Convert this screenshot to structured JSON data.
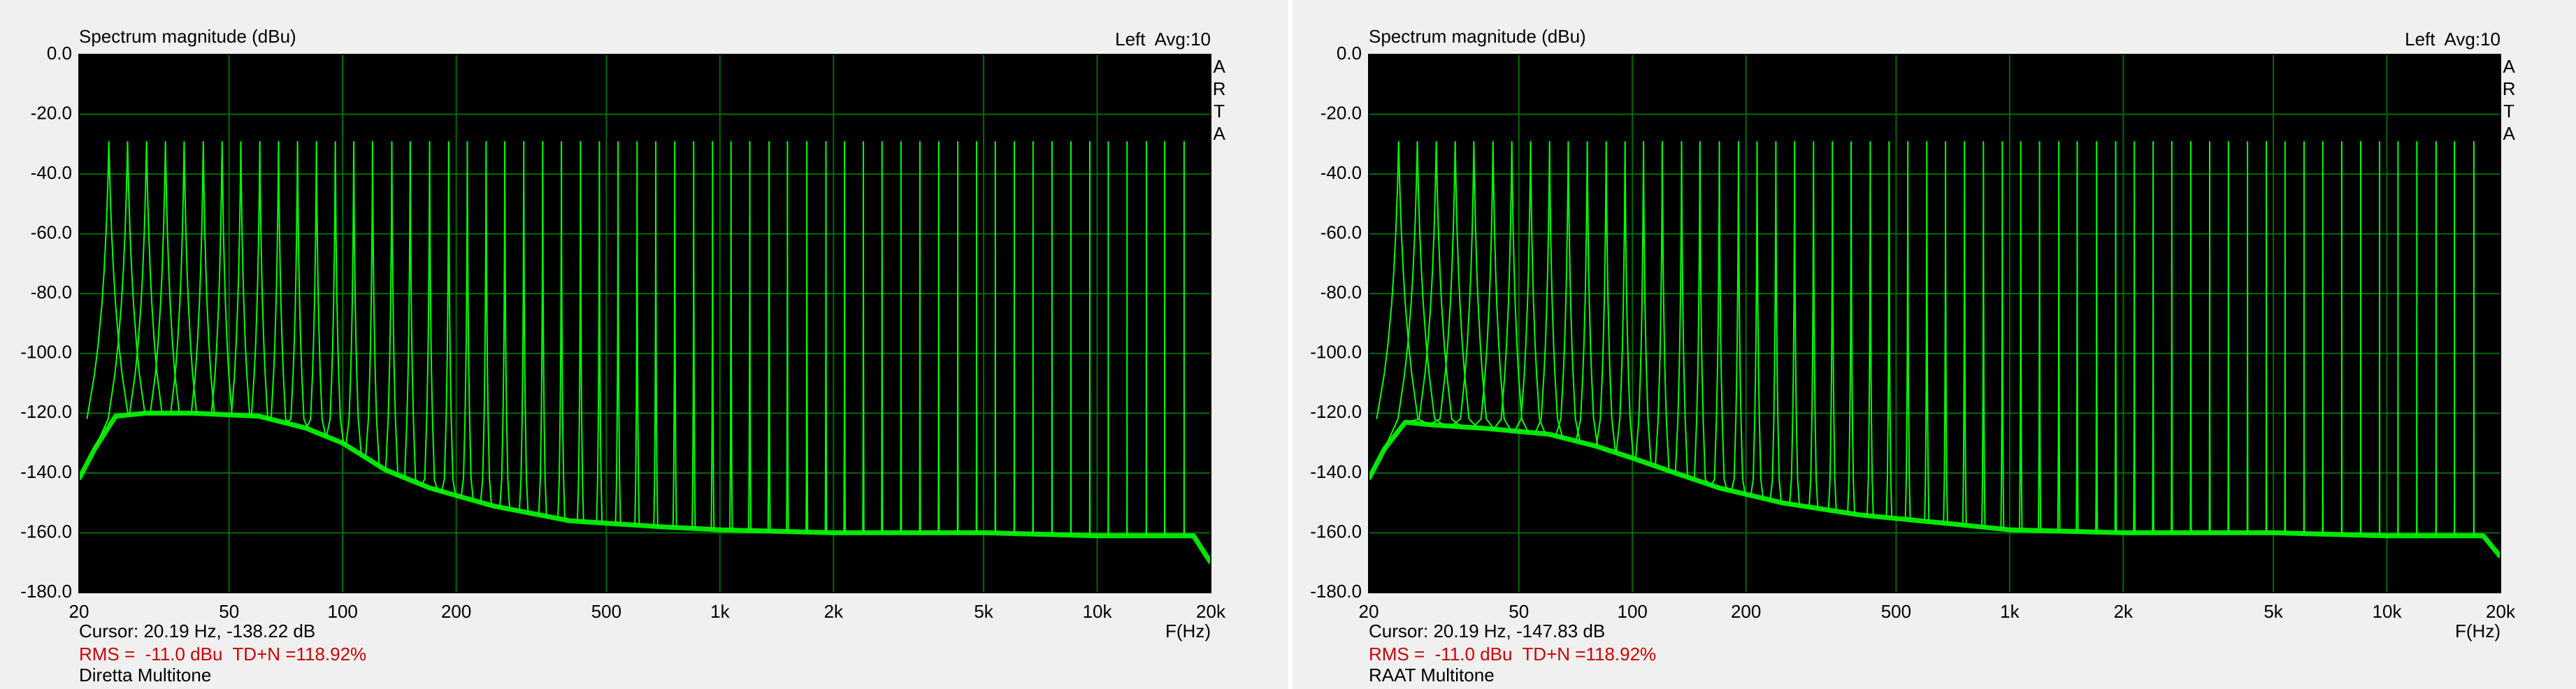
{
  "chart_data": [
    {
      "type": "line",
      "title": "Spectrum magnitude (dBu)",
      "channel": "Left  Avg:10",
      "watermark": "ARTA",
      "xlabel": "F(Hz)",
      "cursor": "Cursor: 20.19 Hz, -138.22 dB",
      "rms": "RMS =  -11.0 dBu  TD+N =118.92%",
      "caption": "Diretta Multitone",
      "xscale": "log",
      "grid": true,
      "color": "#00ff00",
      "xlim": [
        20,
        20000
      ],
      "ylim": [
        -180,
        0
      ],
      "xticks": [
        20,
        50,
        100,
        200,
        500,
        {
          "value": 1000,
          "label": "1k"
        },
        {
          "value": 2000,
          "label": "2k"
        },
        {
          "value": 5000,
          "label": "5k"
        },
        {
          "value": 10000,
          "label": "10k"
        },
        {
          "value": 20000,
          "label": "20k"
        }
      ],
      "yticks": [
        {
          "value": 0,
          "label": "0.0"
        },
        {
          "value": -20,
          "label": "-20.0"
        },
        {
          "value": -40,
          "label": "-40.0"
        },
        {
          "value": -60,
          "label": "-60.0"
        },
        {
          "value": -80,
          "label": "-80.0"
        },
        {
          "value": -100,
          "label": "-100.0"
        },
        {
          "value": -120,
          "label": "-120.0"
        },
        {
          "value": -140,
          "label": "-140.0"
        },
        {
          "value": -160,
          "label": "-160.0"
        },
        {
          "value": -180,
          "label": "-180.0"
        }
      ],
      "tones": {
        "x": [
          24,
          26.9,
          30.2,
          33.9,
          38,
          42.7,
          47.9,
          53.7,
          60.3,
          67.6,
          75.9,
          85.2,
          95.6,
          107,
          120,
          135,
          151,
          170,
          191,
          214,
          240,
          269,
          302,
          339,
          380,
          427,
          479,
          537,
          603,
          676,
          759,
          852,
          956,
          1070,
          1200,
          1350,
          1510,
          1700,
          1910,
          2140,
          2400,
          2690,
          3020,
          3390,
          3800,
          4270,
          4790,
          5370,
          6030,
          6760,
          7590,
          8520,
          9560,
          10700,
          12000,
          13500,
          15100,
          17000
        ],
        "values": [
          -29,
          -29,
          -29,
          -29,
          -29,
          -29,
          -29,
          -29,
          -29,
          -29,
          -29,
          -29,
          -29,
          -29,
          -29,
          -29,
          -29,
          -29,
          -29,
          -29,
          -29,
          -29,
          -29,
          -29,
          -29,
          -29,
          -29,
          -29,
          -29,
          -29,
          -29,
          -29,
          -29,
          -29,
          -29,
          -29,
          -29,
          -29,
          -29,
          -29,
          -29,
          -29,
          -29,
          -29,
          -29,
          -29,
          -29,
          -29,
          -29,
          -29,
          -29,
          -29,
          -29,
          -29,
          -29,
          -29,
          -29,
          -29
        ]
      },
      "floor": {
        "x": [
          20,
          22,
          25,
          30,
          40,
          60,
          80,
          100,
          130,
          170,
          250,
          400,
          700,
          1000,
          2000,
          5000,
          10000,
          18000,
          20000
        ],
        "values": [
          -142,
          -132,
          -121,
          -120,
          -120,
          -121,
          -125,
          -130,
          -139,
          -145,
          -151,
          -156,
          -158,
          -159,
          -160,
          -160,
          -161,
          -161,
          -170
        ]
      }
    },
    {
      "type": "line",
      "title": "Spectrum magnitude (dBu)",
      "channel": "Left  Avg:10",
      "watermark": "ARTA",
      "xlabel": "F(Hz)",
      "cursor": "Cursor: 20.19 Hz, -147.83 dB",
      "rms": "RMS =  -11.0 dBu  TD+N =118.92%",
      "caption": "RAAT Multitone",
      "xscale": "log",
      "grid": true,
      "color": "#00ff00",
      "xlim": [
        20,
        20000
      ],
      "ylim": [
        -180,
        0
      ],
      "xticks": [
        20,
        50,
        100,
        200,
        500,
        {
          "value": 1000,
          "label": "1k"
        },
        {
          "value": 2000,
          "label": "2k"
        },
        {
          "value": 5000,
          "label": "5k"
        },
        {
          "value": 10000,
          "label": "10k"
        },
        {
          "value": 20000,
          "label": "20k"
        }
      ],
      "yticks": [
        {
          "value": 0,
          "label": "0.0"
        },
        {
          "value": -20,
          "label": "-20.0"
        },
        {
          "value": -40,
          "label": "-40.0"
        },
        {
          "value": -60,
          "label": "-60.0"
        },
        {
          "value": -80,
          "label": "-80.0"
        },
        {
          "value": -100,
          "label": "-100.0"
        },
        {
          "value": -120,
          "label": "-120.0"
        },
        {
          "value": -140,
          "label": "-140.0"
        },
        {
          "value": -160,
          "label": "-160.0"
        },
        {
          "value": -180,
          "label": "-180.0"
        }
      ],
      "tones": {
        "x": [
          24,
          26.9,
          30.2,
          33.9,
          38,
          42.7,
          47.9,
          53.7,
          60.3,
          67.6,
          75.9,
          85.2,
          95.6,
          107,
          120,
          135,
          151,
          170,
          191,
          214,
          240,
          269,
          302,
          339,
          380,
          427,
          479,
          537,
          603,
          676,
          759,
          852,
          956,
          1070,
          1200,
          1350,
          1510,
          1700,
          1910,
          2140,
          2400,
          2690,
          3020,
          3390,
          3800,
          4270,
          4790,
          5370,
          6030,
          6760,
          7590,
          8520,
          9560,
          10700,
          12000,
          13500,
          15100,
          17000
        ],
        "values": [
          -29,
          -29,
          -29,
          -29,
          -29,
          -29,
          -29,
          -29,
          -29,
          -29,
          -29,
          -29,
          -29,
          -29,
          -29,
          -29,
          -29,
          -29,
          -29,
          -29,
          -29,
          -29,
          -29,
          -29,
          -29,
          -29,
          -29,
          -29,
          -29,
          -29,
          -29,
          -29,
          -29,
          -29,
          -29,
          -29,
          -29,
          -29,
          -29,
          -29,
          -29,
          -29,
          -29,
          -29,
          -29,
          -29,
          -29,
          -29,
          -29,
          -29,
          -29,
          -29,
          -29,
          -29,
          -29,
          -29,
          -29,
          -29
        ]
      },
      "floor": {
        "x": [
          20,
          22,
          25,
          30,
          40,
          60,
          80,
          100,
          130,
          170,
          250,
          400,
          700,
          1000,
          2000,
          5000,
          10000,
          18000,
          20000
        ],
        "values": [
          -142,
          -132,
          -123,
          -124,
          -125,
          -127,
          -131,
          -135,
          -140,
          -145,
          -150,
          -154,
          -157,
          -159,
          -160,
          -160,
          -161,
          -161,
          -168
        ]
      }
    }
  ]
}
